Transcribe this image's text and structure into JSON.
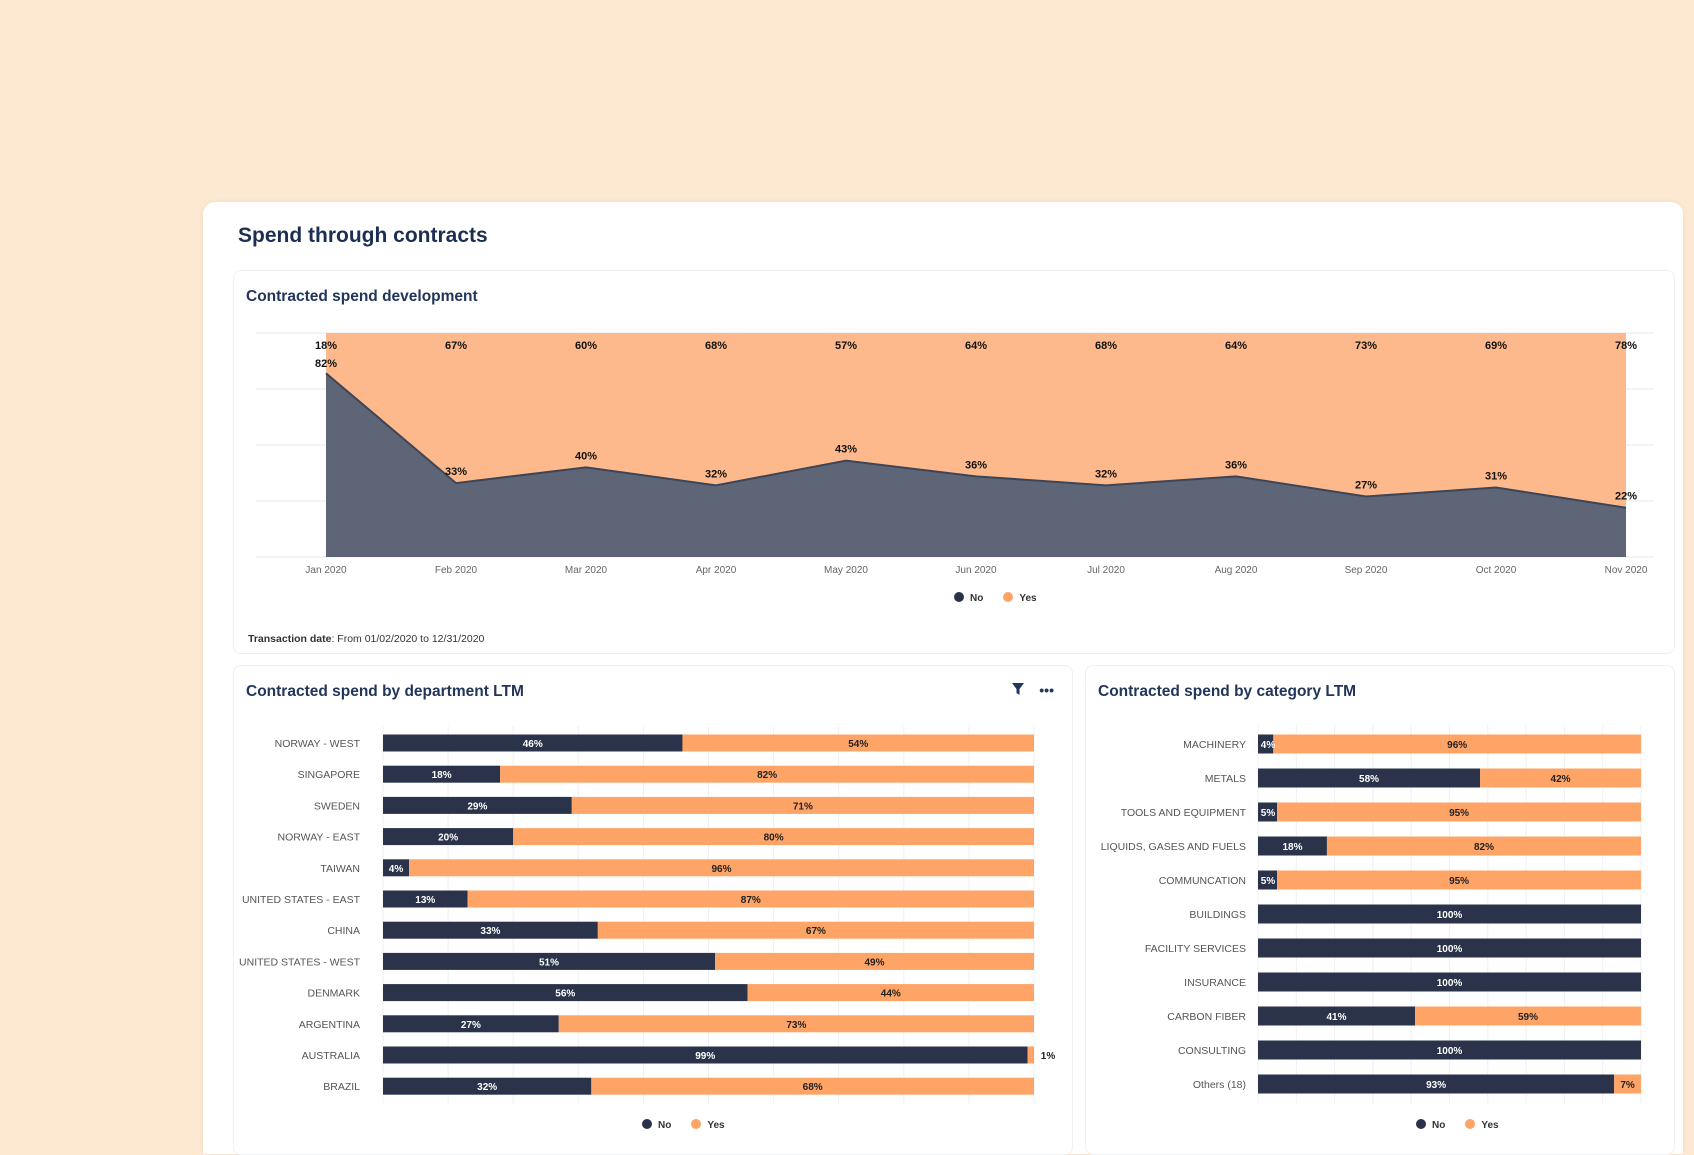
{
  "page_title": "Spend through contracts",
  "colors": {
    "no": "#2a3349",
    "yes": "#fda466",
    "area_no": "#5d6577",
    "area_yes": "#fdb98b",
    "title": "#1c2f52"
  },
  "legend": {
    "no": "No",
    "yes": "Yes"
  },
  "development": {
    "title": "Contracted spend development",
    "footnote_label": "Transaction date",
    "footnote_value": ": From 01/02/2020 to 12/31/2020"
  },
  "department": {
    "title": "Contracted spend by department LTM",
    "icons": [
      "filter-icon",
      "more-icon"
    ]
  },
  "category": {
    "title": "Contracted spend by category LTM"
  },
  "chart_data": [
    {
      "type": "area",
      "stacked": true,
      "normalized": true,
      "ylim": [
        0,
        100
      ],
      "grid": true,
      "legend": "bottom",
      "categories": [
        "Jan 2020",
        "Feb 2020",
        "Mar 2020",
        "Apr 2020",
        "May 2020",
        "Jun 2020",
        "Jul 2020",
        "Aug 2020",
        "Sep 2020",
        "Oct 2020",
        "Nov 2020"
      ],
      "series": [
        {
          "name": "No",
          "values": [
            82,
            33,
            40,
            32,
            43,
            36,
            32,
            36,
            27,
            31,
            22
          ]
        },
        {
          "name": "Yes",
          "values": [
            18,
            67,
            60,
            68,
            57,
            64,
            68,
            64,
            73,
            69,
            78
          ]
        }
      ]
    },
    {
      "type": "bar",
      "orientation": "horizontal",
      "stacked": true,
      "xlim": [
        0,
        100
      ],
      "legend": "bottom",
      "categories": [
        "NORWAY - WEST",
        "SINGAPORE",
        "SWEDEN",
        "NORWAY - EAST",
        "TAIWAN",
        "UNITED STATES - EAST",
        "CHINA",
        "UNITED STATES - WEST",
        "DENMARK",
        "ARGENTINA",
        "AUSTRALIA",
        "BRAZIL"
      ],
      "series": [
        {
          "name": "No",
          "values": [
            46,
            18,
            29,
            20,
            4,
            13,
            33,
            51,
            56,
            27,
            99,
            32
          ]
        },
        {
          "name": "Yes",
          "values": [
            54,
            82,
            71,
            80,
            96,
            87,
            67,
            49,
            44,
            73,
            1,
            68
          ]
        }
      ]
    },
    {
      "type": "bar",
      "orientation": "horizontal",
      "stacked": true,
      "xlim": [
        0,
        100
      ],
      "legend": "bottom",
      "categories": [
        "MACHINERY",
        "METALS",
        "TOOLS AND EQUIPMENT",
        "LIQUIDS, GASES AND FUELS",
        "COMMUNCATION",
        "BUILDINGS",
        "FACILITY SERVICES",
        "INSURANCE",
        "CARBON FIBER",
        "CONSULTING",
        "Others (18)"
      ],
      "series": [
        {
          "name": "No",
          "values": [
            4,
            58,
            5,
            18,
            5,
            100,
            100,
            100,
            41,
            100,
            93
          ]
        },
        {
          "name": "Yes",
          "values": [
            96,
            42,
            95,
            82,
            95,
            0,
            0,
            0,
            59,
            0,
            7
          ]
        }
      ]
    }
  ]
}
